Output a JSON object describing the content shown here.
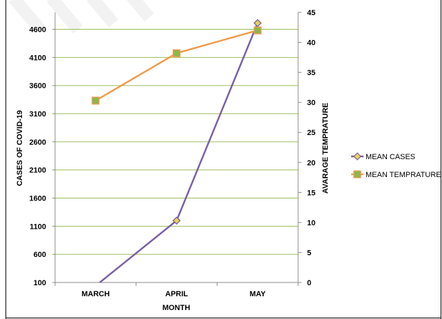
{
  "chart_data": {
    "type": "line",
    "categories": [
      "MARCH",
      "APRIL",
      "MAY"
    ],
    "xlabel": "MONTH",
    "ylabel": "CASES OF COVID-19",
    "y2label": "AVARAGE TEMPRATURE",
    "ylim": [
      100,
      4900
    ],
    "y2lim": [
      0,
      45
    ],
    "y_ticks": [
      "100",
      "600",
      "1100",
      "1600",
      "2100",
      "2600",
      "3100",
      "3600",
      "4100",
      "4600"
    ],
    "y2_ticks": [
      "0",
      "5",
      "10",
      "15",
      "20",
      "25",
      "30",
      "35",
      "40",
      "45"
    ],
    "grid": true,
    "legend_position": "right",
    "series": [
      {
        "name": "MEAN CASES",
        "axis": "left",
        "color": "#7a5fa6",
        "marker": "diamond",
        "marker_fill": "#e8d44d",
        "values": [
          40,
          1200,
          4710
        ]
      },
      {
        "name": "MEAN TEMPRATURE",
        "axis": "right",
        "color": "#f29a4a",
        "marker": "square",
        "marker_fill": "#8db64c",
        "values": [
          30.3,
          38.2,
          42
        ]
      }
    ],
    "grid_color": "#9bbb59"
  }
}
